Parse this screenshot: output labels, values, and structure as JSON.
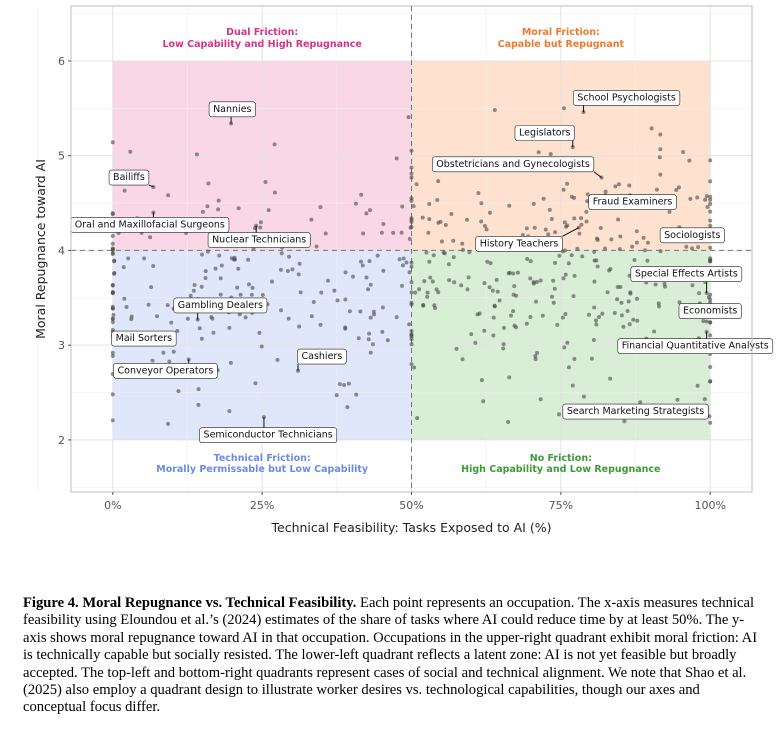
{
  "chart_data": {
    "type": "scatter",
    "xlabel": "Technical Feasibility: Tasks Exposed to AI (%)",
    "ylabel": "Moral Repugnance toward AI",
    "xlim": [
      -0.07,
      1.07
    ],
    "ylim": [
      1.45,
      6.58
    ],
    "x_ticks": [
      0,
      0.25,
      0.5,
      0.75,
      1.0
    ],
    "x_tick_labels": [
      "0%",
      "25%",
      "50%",
      "75%",
      "100%"
    ],
    "y_ticks": [
      2,
      3,
      4,
      5,
      6
    ],
    "y_tick_labels": [
      "2",
      "3",
      "4",
      "5",
      "6"
    ],
    "threshold_x": 0.5,
    "threshold_y": 4,
    "quadrants": [
      {
        "name": "dual-friction",
        "title": "Dual Friction:",
        "subtitle": "Low Capability and High Repugnance",
        "x": [
          0,
          0.5
        ],
        "y": [
          4,
          6
        ],
        "fill": "#f4b6d2",
        "text_color": "#d6338a"
      },
      {
        "name": "moral-friction",
        "title": "Moral Friction:",
        "subtitle": "Capable but Repugnant",
        "x": [
          0.5,
          1
        ],
        "y": [
          4,
          6
        ],
        "fill": "#fdc9a6",
        "text_color": "#f07a2a"
      },
      {
        "name": "technical-friction",
        "title": "Technical Friction:",
        "subtitle": "Morally Permissable but Low Capability",
        "x": [
          0,
          0.5
        ],
        "y": [
          2,
          4
        ],
        "fill": "#c9d3f7",
        "text_color": "#6b8be6"
      },
      {
        "name": "no-friction",
        "title": "No Friction:",
        "subtitle": "High Capability and Low Repugnance",
        "x": [
          0.5,
          1
        ],
        "y": [
          2,
          4
        ],
        "fill": "#b9deb6",
        "text_color": "#3d9b3a"
      }
    ],
    "labels": [
      {
        "text": "Nannies",
        "x": 0.198,
        "y": 5.34,
        "lx": 0.2,
        "ly": 5.5
      },
      {
        "text": "Bailiffs",
        "x": 0.068,
        "y": 4.67,
        "lx": 0.027,
        "ly": 4.78
      },
      {
        "text": "Oral and Maxillofacial Surgeons",
        "x": 0.068,
        "y": 4.4,
        "lx": 0.062,
        "ly": 4.28
      },
      {
        "text": "Nuclear Technicians",
        "x": 0.24,
        "y": 4.26,
        "lx": 0.245,
        "ly": 4.12
      },
      {
        "text": "Gambling Dealers",
        "x": 0.142,
        "y": 3.27,
        "lx": 0.18,
        "ly": 3.43
      },
      {
        "text": "Mail Sorters",
        "x": 0.108,
        "y": 3.15,
        "lx": 0.052,
        "ly": 3.08
      },
      {
        "text": "Conveyor Operators",
        "x": 0.127,
        "y": 2.85,
        "lx": 0.088,
        "ly": 2.74
      },
      {
        "text": "Cashiers",
        "x": 0.31,
        "y": 2.73,
        "lx": 0.35,
        "ly": 2.89
      },
      {
        "text": "Semiconductor Technicians",
        "x": 0.253,
        "y": 2.24,
        "lx": 0.26,
        "ly": 2.06
      },
      {
        "text": "School Psychologists",
        "x": 0.788,
        "y": 5.46,
        "lx": 0.86,
        "ly": 5.62
      },
      {
        "text": "Legislators",
        "x": 0.77,
        "y": 5.09,
        "lx": 0.723,
        "ly": 5.25
      },
      {
        "text": "Obstetricians and Gynecologists",
        "x": 0.818,
        "y": 4.77,
        "lx": 0.67,
        "ly": 4.92
      },
      {
        "text": "Fraud Examiners",
        "x": 0.825,
        "y": 4.62,
        "lx": 0.87,
        "ly": 4.52
      },
      {
        "text": "History Teachers",
        "x": 0.78,
        "y": 4.24,
        "lx": 0.68,
        "ly": 4.08
      },
      {
        "text": "Sociologists",
        "x": 0.935,
        "y": 4.17,
        "lx": 0.97,
        "ly": 4.17
      },
      {
        "text": "Special Effects Artists",
        "x": 0.994,
        "y": 3.55,
        "lx": 0.96,
        "ly": 3.76
      },
      {
        "text": "Economists",
        "x": 0.994,
        "y": 3.25,
        "lx": 1.0,
        "ly": 3.37
      },
      {
        "text": "Financial Quantitative Analysts",
        "x": 0.994,
        "y": 3.14,
        "lx": 0.975,
        "ly": 3.0
      },
      {
        "text": "Search Marketing Strategists",
        "x": 0.994,
        "y": 2.34,
        "lx": 0.875,
        "ly": 2.31
      }
    ]
  },
  "caption": {
    "lead": "Figure 4. Moral Repugnance vs. Technical Feasibility.",
    "body": " Each point represents an occupation. The x-axis measures technical feasibility using Eloundou et al.’s (2024) estimates of the share of tasks where AI could reduce time by at least 50%. The y-axis shows moral repugnance toward AI in that occupation. Occupations in the upper-right quadrant exhibit moral friction: AI is technically capable but socially resisted. The lower-left quadrant reflects a latent zone: AI is not yet feasible but broadly accepted. The top-left and bottom-right quadrants represent cases of social and technical alignment. We note that Shao et al. (2025) also employ a quadrant design to illustrate worker desires vs. technological capabilities, though our axes and conceptual focus differ."
  }
}
